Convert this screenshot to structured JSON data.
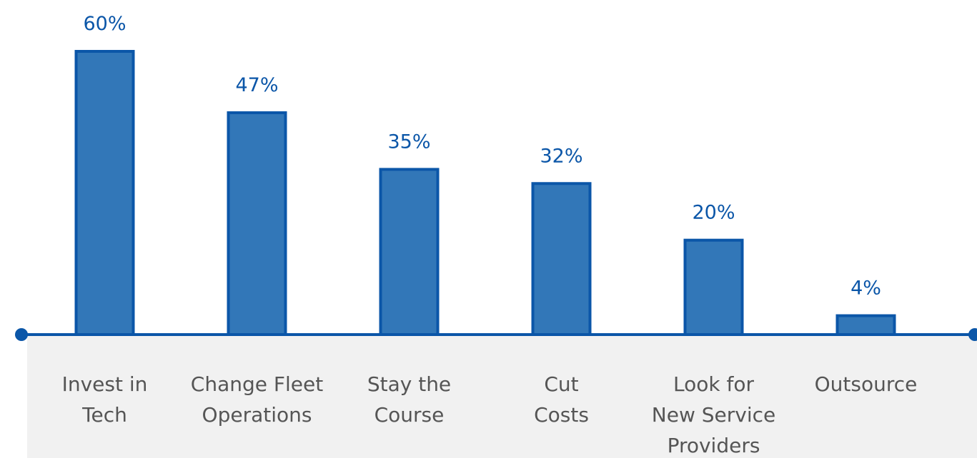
{
  "chart_data": {
    "type": "bar",
    "categories": [
      [
        "Invest in",
        "Tech"
      ],
      [
        "Change Fleet",
        "Operations"
      ],
      [
        "Stay the",
        "Course"
      ],
      [
        "Cut",
        "Costs"
      ],
      [
        "Look for",
        "New Service",
        "Providers"
      ],
      [
        "Outsource"
      ]
    ],
    "values": [
      60,
      47,
      35,
      32,
      20,
      4
    ],
    "value_labels": [
      "60%",
      "47%",
      "35%",
      "32%",
      "20%",
      "4%"
    ],
    "unit": "%",
    "ylim": [
      0,
      60
    ],
    "grid": false,
    "colors": {
      "bar_fill": "#3277b8",
      "bar_stroke": "#0b56a8",
      "axis": "#0b56a8",
      "label_text": "#0b56a8",
      "category_text": "#555555",
      "label_band": "#f1f1f1"
    }
  }
}
